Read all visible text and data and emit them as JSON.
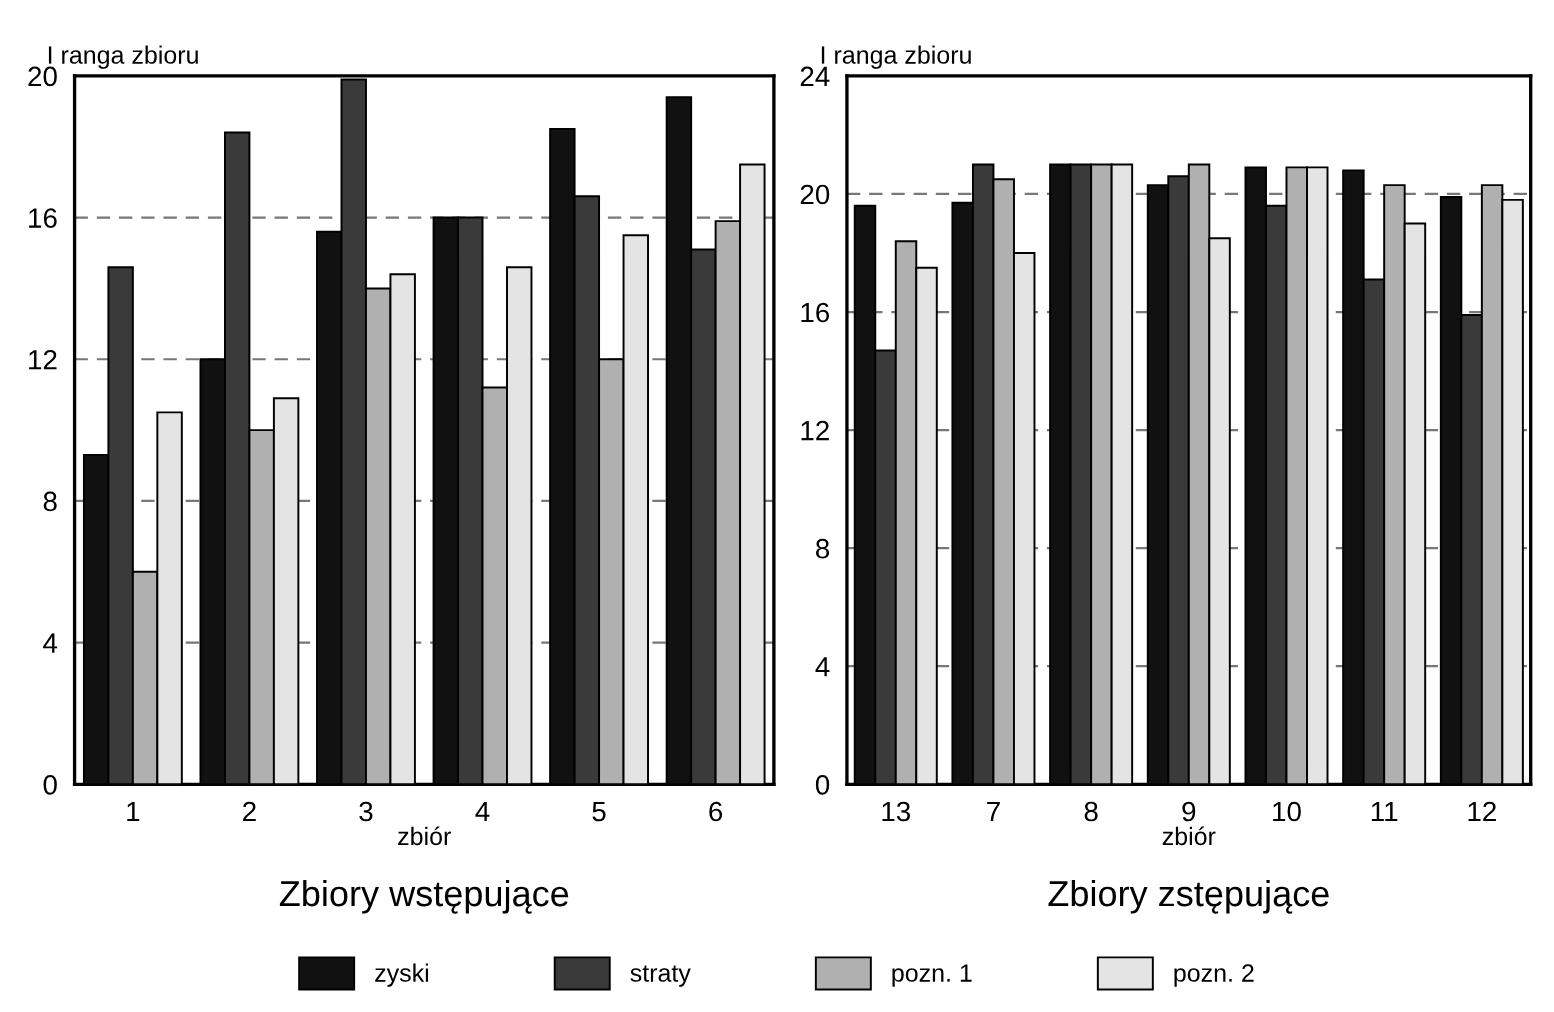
{
  "chart_data": [
    {
      "type": "bar",
      "title": "Zbiory wstępujące",
      "xlabel": "zbiór",
      "ylabel": "I ranga zbioru",
      "categories": [
        "1",
        "2",
        "3",
        "4",
        "5",
        "6"
      ],
      "series": [
        {
          "name": "zyski",
          "color": "#111111",
          "values": [
            9.3,
            12.0,
            15.6,
            16.0,
            18.5,
            19.4
          ]
        },
        {
          "name": "straty",
          "color": "#3a3a3a",
          "values": [
            14.6,
            18.4,
            19.9,
            16.0,
            16.6,
            15.1
          ]
        },
        {
          "name": "pozn. 1",
          "color": "#b0b0b0",
          "values": [
            6.0,
            10.0,
            14.0,
            11.2,
            12.0,
            15.9
          ]
        },
        {
          "name": "pozn. 2",
          "color": "#e4e4e4",
          "values": [
            10.5,
            10.9,
            14.4,
            14.6,
            15.5,
            17.5
          ]
        }
      ],
      "ylim": [
        0,
        20
      ],
      "yticks": [
        0,
        4,
        8,
        12,
        16,
        20
      ],
      "grid": "y",
      "legend": "bottom"
    },
    {
      "type": "bar",
      "title": "Zbiory zstępujące",
      "xlabel": "zbiór",
      "ylabel": "I ranga zbioru",
      "categories": [
        "13",
        "7",
        "8",
        "9",
        "10",
        "11",
        "12"
      ],
      "series": [
        {
          "color": "#111111",
          "values": [
            19.6,
            19.7,
            21.0,
            20.3,
            20.9,
            20.8,
            19.9
          ]
        },
        {
          "color": "#3a3a3a",
          "values": [
            14.7,
            21.0,
            21.0,
            20.6,
            19.6,
            17.1,
            15.9
          ]
        },
        {
          "color": "#b0b0b0",
          "values": [
            18.4,
            20.5,
            21.0,
            21.0,
            20.9,
            20.3,
            20.3
          ]
        },
        {
          "color": "#e4e4e4",
          "values": [
            17.5,
            18.0,
            21.0,
            18.5,
            20.9,
            19.0,
            19.8
          ]
        }
      ],
      "ylim": [
        0,
        24
      ],
      "yticks": [
        0,
        4,
        8,
        12,
        16,
        20,
        24
      ],
      "grid": "y"
    }
  ]
}
